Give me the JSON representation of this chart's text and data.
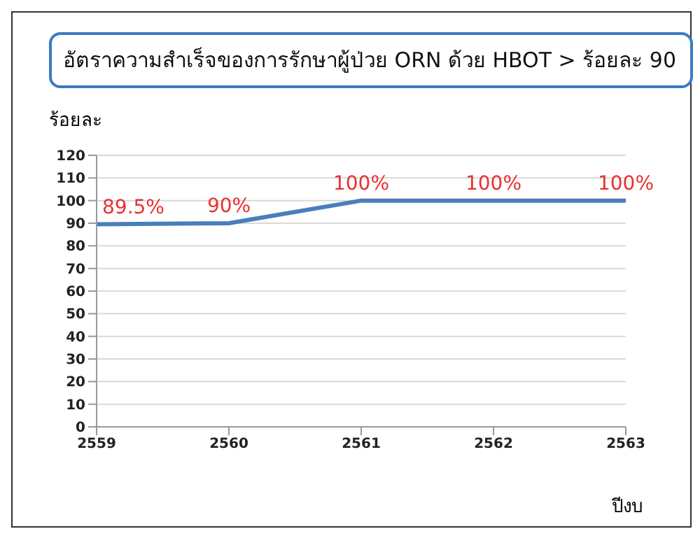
{
  "chart_data": {
    "type": "line",
    "title": "อัตราความสำเร็จของการรักษาผู้ป่วย ORN ด้วย HBOT > ร้อยละ 90",
    "ylabel": "ร้อยละ",
    "xlabel": "ปีงบ",
    "categories": [
      "2559",
      "2560",
      "2561",
      "2562",
      "2563"
    ],
    "series": [
      {
        "color": "#4a7ebb",
        "values": [
          89.5,
          90,
          100,
          100,
          100
        ],
        "value_labels": [
          "89.5%",
          "90%",
          "100%",
          "100%",
          "100%"
        ]
      }
    ],
    "ylim": [
      0,
      120
    ],
    "yticks": [
      0,
      10,
      20,
      30,
      40,
      50,
      60,
      70,
      80,
      90,
      100,
      110,
      120
    ],
    "grid": "y",
    "marker": "none",
    "line_style": "solid",
    "legend": false
  }
}
